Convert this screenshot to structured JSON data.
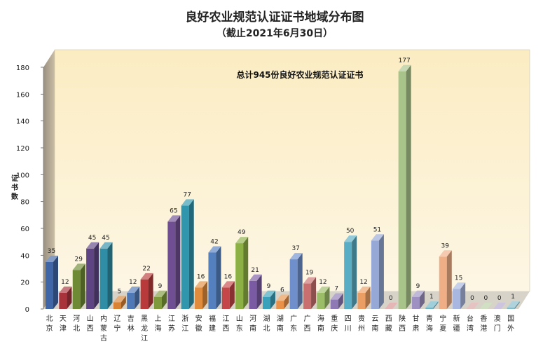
{
  "chart_data": {
    "type": "bar",
    "title": "良好农业规范认证证书地域分布图",
    "subtitle": "（截止2021年6月30日）",
    "annotation": "总计945份良好农业规范认证证书",
    "ylabel": "证书数",
    "xlabel": "",
    "ylim": [
      0,
      180
    ],
    "yticks": [
      0,
      20,
      40,
      60,
      80,
      100,
      120,
      140,
      160,
      180
    ],
    "grid": false,
    "legend": "none",
    "categories": [
      "北京",
      "天津",
      "河北",
      "山西",
      "内蒙古",
      "辽宁",
      "吉林",
      "黑龙江",
      "上海",
      "江苏",
      "浙江",
      "安徽",
      "福建",
      "江西",
      "山东",
      "河南",
      "湖北",
      "湖南",
      "广东",
      "广西",
      "海南",
      "重庆",
      "四川",
      "贵州",
      "云南",
      "西藏",
      "陕西",
      "甘肃",
      "青海",
      "宁夏",
      "新疆",
      "台湾",
      "香港",
      "澳门",
      "国外"
    ],
    "values": [
      35,
      12,
      29,
      45,
      45,
      5,
      12,
      22,
      9,
      65,
      77,
      16,
      42,
      16,
      49,
      21,
      9,
      6,
      37,
      19,
      12,
      7,
      50,
      12,
      51,
      0,
      177,
      9,
      1,
      39,
      15,
      0,
      0,
      0,
      1
    ],
    "colors": [
      "#3f67a8",
      "#a8333a",
      "#6f8a34",
      "#5e4483",
      "#2f8ea5",
      "#d98232",
      "#4f78b7",
      "#b83a3a",
      "#7e9a3c",
      "#6f4e93",
      "#2f96ae",
      "#e08c3c",
      "#5480c0",
      "#c44648",
      "#8cb043",
      "#7a5aa2",
      "#3aa1ba",
      "#e99148",
      "#6e8fcc",
      "#c96f6f",
      "#9cbd68",
      "#8e79b5",
      "#59adc4",
      "#eb9e63",
      "#95a8d6",
      "#d68f8f",
      "#a9c48b",
      "#9e91c1",
      "#6cb5c7",
      "#f0ae86",
      "#a8b7e0",
      "#d8a3a3",
      "#b8cfa3",
      "#b2a6cd",
      "#83bccb"
    ]
  }
}
